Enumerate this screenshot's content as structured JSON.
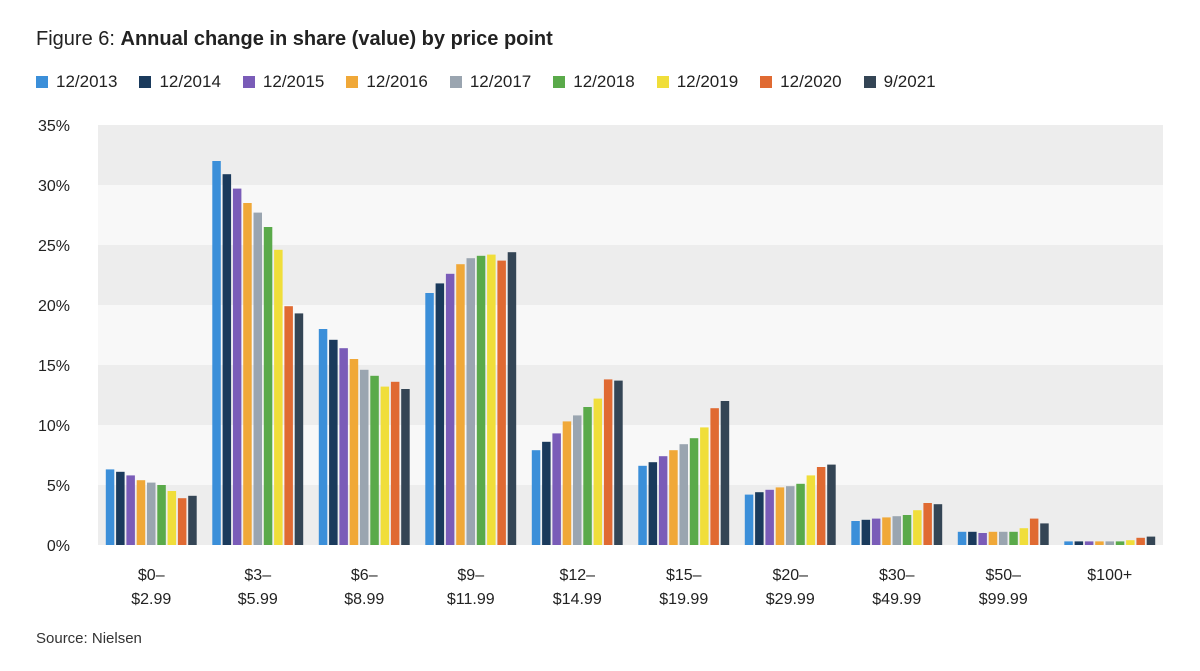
{
  "title": {
    "prefix": "Figure 6:",
    "main": "Annual change in share (value) by price point"
  },
  "source": "Source: Nielsen",
  "chart_data": {
    "type": "bar",
    "title": "Annual change in share (value) by price point",
    "xlabel": "",
    "ylabel": "",
    "ylim": [
      0,
      35
    ],
    "yticks": [
      0,
      5,
      10,
      15,
      20,
      25,
      30,
      35
    ],
    "ytick_labels": [
      "0%",
      "5%",
      "10%",
      "15%",
      "20%",
      "25%",
      "30%",
      "35%"
    ],
    "grid": "alternating horizontal bands",
    "legend_position": "top",
    "categories": [
      [
        "$0–",
        "$2.99"
      ],
      [
        "$3–",
        "$5.99"
      ],
      [
        "$6–",
        "$8.99"
      ],
      [
        "$9–",
        "$11.99"
      ],
      [
        "$12–",
        "$14.99"
      ],
      [
        "$15–",
        "$19.99"
      ],
      [
        "$20–",
        "$29.99"
      ],
      [
        "$30–",
        "$49.99"
      ],
      [
        "$50–",
        "$99.99"
      ],
      [
        "$100+"
      ]
    ],
    "series": [
      {
        "name": "12/2013",
        "color": "#3b8fd9",
        "values": [
          6.3,
          32.0,
          18.0,
          21.0,
          7.9,
          6.6,
          4.2,
          2.0,
          1.1,
          0.3
        ]
      },
      {
        "name": "12/2014",
        "color": "#1a3a5c",
        "values": [
          6.1,
          30.9,
          17.1,
          21.8,
          8.6,
          6.9,
          4.4,
          2.1,
          1.1,
          0.3
        ]
      },
      {
        "name": "12/2015",
        "color": "#7a5cb8",
        "values": [
          5.8,
          29.7,
          16.4,
          22.6,
          9.3,
          7.4,
          4.6,
          2.2,
          1.0,
          0.3
        ]
      },
      {
        "name": "12/2016",
        "color": "#f0a838",
        "values": [
          5.4,
          28.5,
          15.5,
          23.4,
          10.3,
          7.9,
          4.8,
          2.3,
          1.1,
          0.3
        ]
      },
      {
        "name": "12/2017",
        "color": "#9aa5b0",
        "values": [
          5.2,
          27.7,
          14.6,
          23.9,
          10.8,
          8.4,
          4.9,
          2.4,
          1.1,
          0.3
        ]
      },
      {
        "name": "12/2018",
        "color": "#5aaa4a",
        "values": [
          5.0,
          26.5,
          14.1,
          24.1,
          11.5,
          8.9,
          5.1,
          2.5,
          1.1,
          0.3
        ]
      },
      {
        "name": "12/2019",
        "color": "#f0de3a",
        "values": [
          4.5,
          24.6,
          13.2,
          24.2,
          12.2,
          9.8,
          5.8,
          2.9,
          1.4,
          0.4
        ]
      },
      {
        "name": "12/2020",
        "color": "#e06a32",
        "values": [
          3.9,
          19.9,
          13.6,
          23.7,
          13.8,
          11.4,
          6.5,
          3.5,
          2.2,
          0.6
        ]
      },
      {
        "name": "9/2021",
        "color": "#344555",
        "values": [
          4.1,
          19.3,
          13.0,
          24.4,
          13.7,
          12.0,
          6.7,
          3.4,
          1.8,
          0.7
        ]
      }
    ],
    "colors": {
      "band_dark": "#ededed",
      "band_light": "#f8f8f8"
    }
  }
}
